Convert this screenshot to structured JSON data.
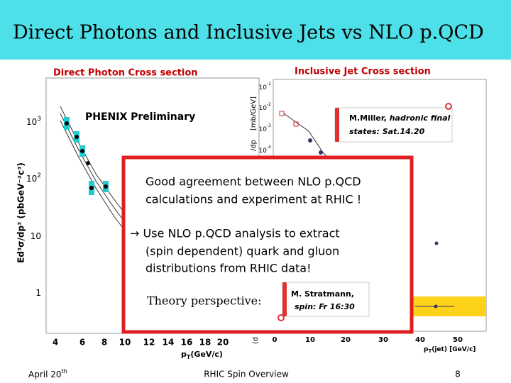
{
  "header": {
    "title": "Direct Photons and Inclusive Jets vs NLO p.QCD"
  },
  "left_plot": {
    "title": "Direct Photon Cross section",
    "label": "PHENIX Preliminary",
    "y_label": "Ed³σ/dp³ (pbGeV⁻²c³)",
    "yticks": [
      {
        "base": "10",
        "exp": "3"
      },
      {
        "base": "10",
        "exp": "2"
      },
      {
        "base": "10",
        "exp": ""
      },
      {
        "base": "1",
        "exp": ""
      }
    ],
    "xticks": [
      "4",
      "6",
      "8",
      "10",
      "12",
      "14",
      "16",
      "18",
      "20"
    ],
    "x_label": {
      "main": "p",
      "sub": "T",
      "rest": "(GeV/c)"
    }
  },
  "right_plot": {
    "title": "Inclusive Jet Cross section",
    "y_unit": "[mb/GeV]",
    "y_label_top": "/dp",
    "y_label_bottom": "(d",
    "yticks": [
      {
        "base": "10",
        "exp": "-1"
      },
      {
        "base": "10",
        "exp": "-2"
      },
      {
        "base": "10",
        "exp": "-3"
      },
      {
        "base": "10",
        "exp": "-4"
      }
    ],
    "xticks": [
      "0",
      "10",
      "20",
      "30",
      "40",
      "50"
    ],
    "x_label": {
      "main": "p",
      "sub": "T",
      "rest": "(jet)  [GeV/c]"
    },
    "callout": {
      "name": "M.Miller,",
      "lines": [
        "hadronic final",
        "states: Sat.14.20"
      ]
    }
  },
  "overlay": {
    "lines": [
      "Good agreement between NLO p.QCD",
      "calculations and experiment at RHIC !"
    ],
    "points": [
      "→ Use NLO p.QCD analysis to extract",
      "(spin dependent) quark and gluon",
      "distributions from RHIC data!"
    ],
    "theory": "Theory perspective:",
    "callout": {
      "name": "M. Stratmann,",
      "detail": "spin: Fr 16:30"
    }
  },
  "footer": {
    "date": {
      "base": "April 20",
      "sup": "th"
    },
    "center": "RHIC Spin Overview",
    "page": "8"
  }
}
